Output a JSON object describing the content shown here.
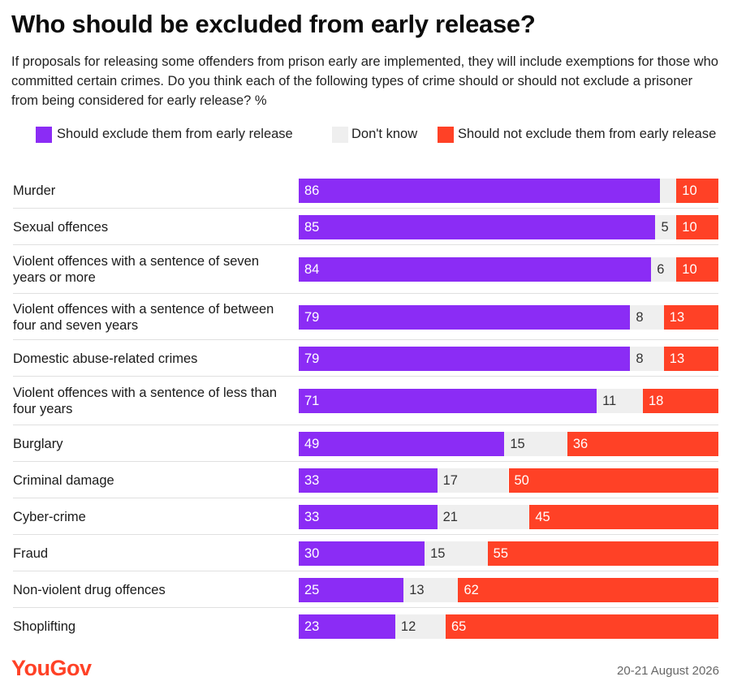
{
  "title": "Who should be excluded from early release?",
  "subtitle": "If proposals for releasing some offenders from prison early are implemented, they will include exemptions for those who committed certain crimes. Do you think each of the following types of crime should or should not exclude a prisoner from being considered for early release? %",
  "footer": {
    "logo": "YouGov",
    "date": "20-21 August 2026"
  },
  "colors": {
    "exclude": "#8b2cf5",
    "dont_know": "#efefef",
    "not_exclude": "#ff4126",
    "logo": "#ff4126"
  },
  "chart_data": {
    "type": "bar",
    "orientation": "horizontal",
    "stacked": true,
    "categories": [
      "Murder",
      "Sexual offences",
      "Violent offences with a sentence of seven years or more",
      "Violent offences with a sentence of between four and seven years",
      "Domestic abuse-related crimes",
      "Violent offences with a sentence of less than four years",
      "Burglary",
      "Criminal damage",
      "Cyber-crime",
      "Fraud",
      "Non-violent drug offences",
      "Shoplifting"
    ],
    "series": [
      {
        "name": "Should exclude them from early release",
        "values": [
          86,
          85,
          84,
          79,
          79,
          71,
          49,
          33,
          33,
          30,
          25,
          23
        ]
      },
      {
        "name": "Don't know",
        "values": [
          null,
          5,
          6,
          8,
          8,
          11,
          15,
          17,
          21,
          15,
          13,
          12
        ]
      },
      {
        "name": "Should not exclude them from early release",
        "values": [
          10,
          10,
          10,
          13,
          13,
          18,
          36,
          50,
          45,
          55,
          62,
          65
        ]
      }
    ],
    "legend": "top"
  }
}
